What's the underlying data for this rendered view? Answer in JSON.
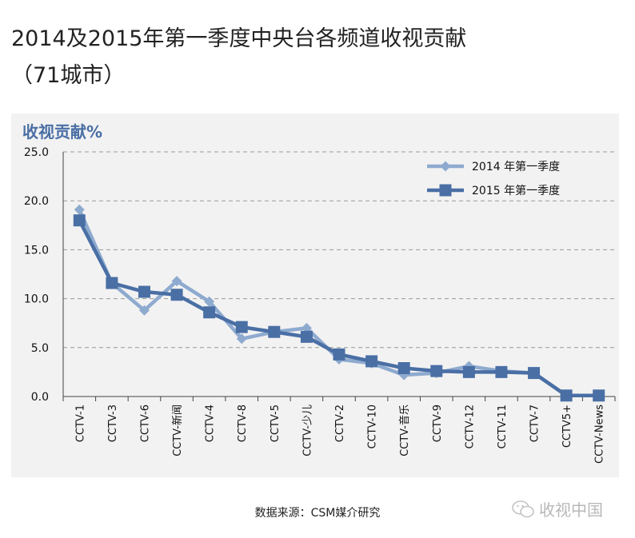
{
  "title": "2014及2015年第一季度中央台各频道收视贡献\n（71城市）",
  "source": "数据来源：CSM媒介研究",
  "watermark": "收视中国",
  "chart_data": {
    "type": "line",
    "ylabel": "收视贡献%",
    "ylim": [
      0,
      25
    ],
    "yticks": [
      "0.0",
      "5.0",
      "10.0",
      "15.0",
      "20.0",
      "25.0"
    ],
    "grid": true,
    "legend_position": "top-right",
    "categories": [
      "CCTV-1",
      "CCTV-3",
      "CCTV-6",
      "CCTV-新闻",
      "CCTV-4",
      "CCTV-8",
      "CCTV-5",
      "CCTV-少儿",
      "CCTV-2",
      "CCTV-10",
      "CCTV-音乐",
      "CCTV-9",
      "CCTV-12",
      "CCTV-11",
      "CCTV-7",
      "CCTV5+",
      "CCTV-News"
    ],
    "series": [
      {
        "name": "2014 年第一季度",
        "color": "#8eaacf",
        "marker": "diamond",
        "values": [
          19.1,
          11.6,
          8.8,
          11.8,
          9.7,
          5.9,
          6.6,
          7.0,
          3.8,
          3.4,
          2.2,
          2.4,
          3.1,
          2.6,
          2.4,
          0.1,
          0.1
        ]
      },
      {
        "name": "2015 年第一季度",
        "color": "#4a6fa5",
        "marker": "square",
        "values": [
          18.0,
          11.6,
          10.7,
          10.4,
          8.6,
          7.1,
          6.6,
          6.1,
          4.3,
          3.6,
          2.9,
          2.6,
          2.5,
          2.5,
          2.4,
          0.1,
          0.1
        ]
      }
    ]
  }
}
